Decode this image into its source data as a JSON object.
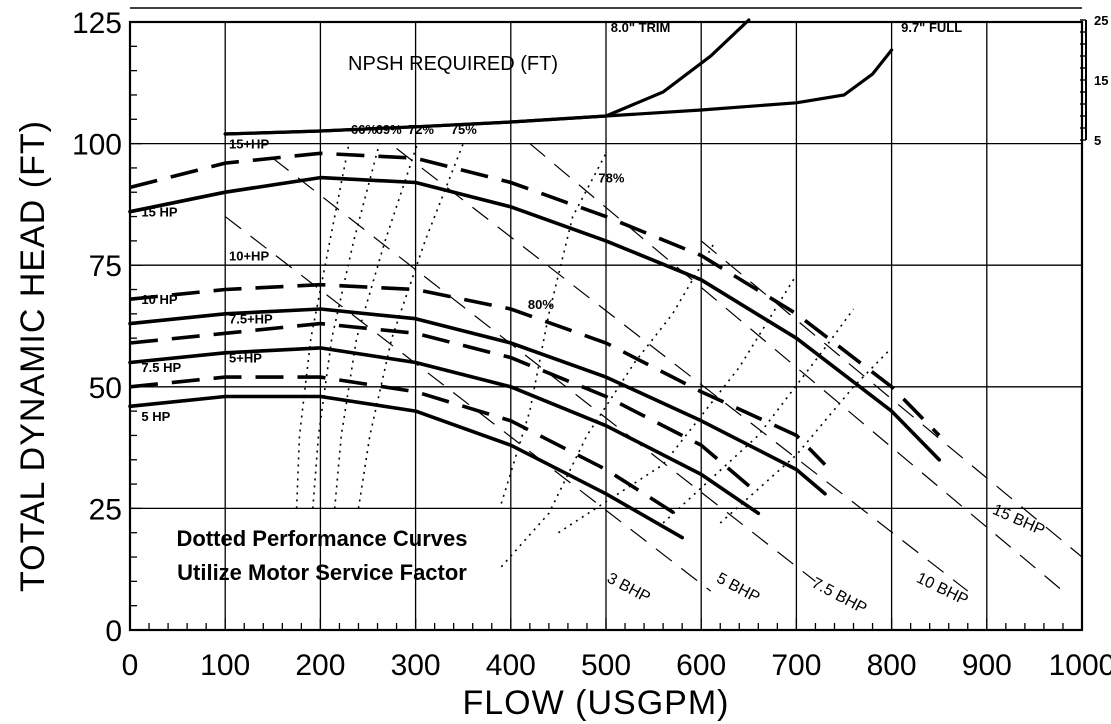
{
  "chart_data": {
    "type": "line",
    "xlabel": "FLOW (USGPM)",
    "ylabel": "TOTAL DYNAMIC HEAD (FT)",
    "xlim": [
      0,
      1000
    ],
    "ylim": [
      0,
      125
    ],
    "x_ticks": [
      "0",
      "100",
      "200",
      "300",
      "400",
      "500",
      "600",
      "700",
      "800",
      "900",
      "1000"
    ],
    "y_ticks": [
      "0",
      "25",
      "50",
      "75",
      "100",
      "125"
    ],
    "grid": true,
    "head_curves": [
      {
        "name": "15 HP",
        "label": "15 HP",
        "style": "solid",
        "points": [
          [
            0,
            86
          ],
          [
            100,
            90
          ],
          [
            200,
            93
          ],
          [
            300,
            92
          ],
          [
            400,
            87
          ],
          [
            500,
            80
          ],
          [
            600,
            72
          ],
          [
            700,
            60
          ],
          [
            800,
            45
          ],
          [
            850,
            35
          ]
        ]
      },
      {
        "name": "15+HP",
        "label": "15+HP",
        "style": "dashed",
        "points": [
          [
            0,
            91
          ],
          [
            100,
            96
          ],
          [
            200,
            98
          ],
          [
            300,
            97
          ],
          [
            400,
            92
          ],
          [
            500,
            85
          ],
          [
            600,
            77
          ],
          [
            700,
            65
          ],
          [
            800,
            50
          ],
          [
            850,
            40
          ]
        ]
      },
      {
        "name": "10 HP",
        "label": "10 HP",
        "style": "solid",
        "points": [
          [
            0,
            63
          ],
          [
            100,
            65
          ],
          [
            200,
            66
          ],
          [
            300,
            64
          ],
          [
            400,
            59
          ],
          [
            500,
            52
          ],
          [
            600,
            43
          ],
          [
            700,
            33
          ],
          [
            730,
            28
          ]
        ]
      },
      {
        "name": "10+HP",
        "label": "10+HP",
        "style": "dashed",
        "points": [
          [
            0,
            68
          ],
          [
            100,
            70
          ],
          [
            200,
            71
          ],
          [
            300,
            70
          ],
          [
            400,
            66
          ],
          [
            500,
            59
          ],
          [
            600,
            49
          ],
          [
            700,
            40
          ],
          [
            730,
            34
          ]
        ]
      },
      {
        "name": "7.5 HP",
        "label": "7.5 HP",
        "style": "solid",
        "points": [
          [
            0,
            55
          ],
          [
            100,
            57
          ],
          [
            200,
            58
          ],
          [
            300,
            55
          ],
          [
            400,
            50
          ],
          [
            500,
            42
          ],
          [
            600,
            32
          ],
          [
            660,
            24
          ]
        ]
      },
      {
        "name": "7.5+HP",
        "label": "7.5+HP",
        "style": "dashed",
        "points": [
          [
            0,
            59
          ],
          [
            100,
            61
          ],
          [
            200,
            63
          ],
          [
            300,
            61
          ],
          [
            400,
            56
          ],
          [
            500,
            48
          ],
          [
            600,
            38
          ],
          [
            660,
            28
          ]
        ]
      },
      {
        "name": "5 HP",
        "label": "5 HP",
        "style": "solid",
        "points": [
          [
            0,
            46
          ],
          [
            100,
            48
          ],
          [
            200,
            48
          ],
          [
            300,
            45
          ],
          [
            400,
            38
          ],
          [
            500,
            28
          ],
          [
            580,
            19
          ]
        ]
      },
      {
        "name": "5+HP",
        "label": "5+HP",
        "style": "dashed",
        "points": [
          [
            0,
            50
          ],
          [
            100,
            52
          ],
          [
            200,
            52
          ],
          [
            300,
            49
          ],
          [
            400,
            43
          ],
          [
            500,
            33
          ],
          [
            580,
            23
          ]
        ]
      }
    ],
    "efficiency_curves": [
      {
        "label": "66%",
        "points": [
          [
            175,
            25
          ],
          [
            178,
            40
          ],
          [
            190,
            60
          ],
          [
            210,
            80
          ],
          [
            230,
            100
          ]
        ]
      },
      {
        "label": "69%",
        "points": [
          [
            192,
            25
          ],
          [
            198,
            40
          ],
          [
            212,
            60
          ],
          [
            235,
            80
          ],
          [
            262,
            100
          ]
        ]
      },
      {
        "label": "72%",
        "points": [
          [
            215,
            25
          ],
          [
            222,
            40
          ],
          [
            238,
            60
          ],
          [
            268,
            80
          ],
          [
            302,
            100
          ]
        ]
      },
      {
        "label": "75%",
        "points": [
          [
            240,
            25
          ],
          [
            252,
            40
          ],
          [
            275,
            60
          ],
          [
            310,
            80
          ],
          [
            350,
            100
          ]
        ]
      },
      {
        "label": "78%",
        "points": [
          [
            390,
            26
          ],
          [
            420,
            45
          ],
          [
            440,
            65
          ],
          [
            465,
            85
          ],
          [
            500,
            98
          ]
        ]
      },
      {
        "label": "80%",
        "points": [
          [
            390,
            13
          ],
          [
            440,
            24
          ],
          [
            480,
            40
          ],
          [
            530,
            55
          ],
          [
            570,
            65
          ],
          [
            615,
            80
          ]
        ]
      },
      {
        "label": "",
        "points": [
          [
            450,
            20
          ],
          [
            560,
            34
          ],
          [
            640,
            54
          ],
          [
            700,
            73
          ]
        ]
      },
      {
        "label": "",
        "points": [
          [
            560,
            22
          ],
          [
            660,
            40
          ],
          [
            730,
            58
          ],
          [
            760,
            66
          ]
        ]
      },
      {
        "label": "",
        "points": [
          [
            620,
            22
          ],
          [
            700,
            36
          ],
          [
            760,
            50
          ],
          [
            800,
            58
          ]
        ]
      }
    ],
    "bhp_lines": [
      {
        "label": "3 BHP",
        "from": [
          100,
          85
        ],
        "to": [
          610,
          8
        ]
      },
      {
        "label": "5 BHP",
        "from": [
          150,
          97
        ],
        "to": [
          720,
          10
        ]
      },
      {
        "label": "7.5 BHP",
        "from": [
          280,
          99
        ],
        "to": [
          880,
          8
        ]
      },
      {
        "label": "10 BHP",
        "from": [
          420,
          100
        ],
        "to": [
          980,
          8
        ]
      },
      {
        "label": "15 BHP",
        "from": [
          600,
          80
        ],
        "to": [
          1000,
          15
        ]
      }
    ],
    "npsh_axis_ticks": [
      "5",
      "15",
      "25"
    ],
    "npsh_curves": [
      {
        "label": "8.0\" TRIM",
        "points": [
          [
            100,
            6
          ],
          [
            200,
            6.5
          ],
          [
            300,
            7.2
          ],
          [
            400,
            8
          ],
          [
            500,
            9
          ],
          [
            560,
            13
          ],
          [
            610,
            19
          ],
          [
            650,
            25
          ]
        ]
      },
      {
        "label": "9.7\" FULL",
        "points": [
          [
            100,
            6
          ],
          [
            200,
            6.5
          ],
          [
            300,
            7.2
          ],
          [
            400,
            8
          ],
          [
            500,
            9
          ],
          [
            600,
            10
          ],
          [
            700,
            11.2
          ],
          [
            750,
            12.5
          ],
          [
            780,
            16
          ],
          [
            800,
            20
          ]
        ]
      }
    ],
    "annotations": {
      "npsh_title": "NPSH REQUIRED (FT)",
      "note_line1": "Dotted Performance Curves",
      "note_line2": "Utilize Motor Service Factor"
    }
  }
}
